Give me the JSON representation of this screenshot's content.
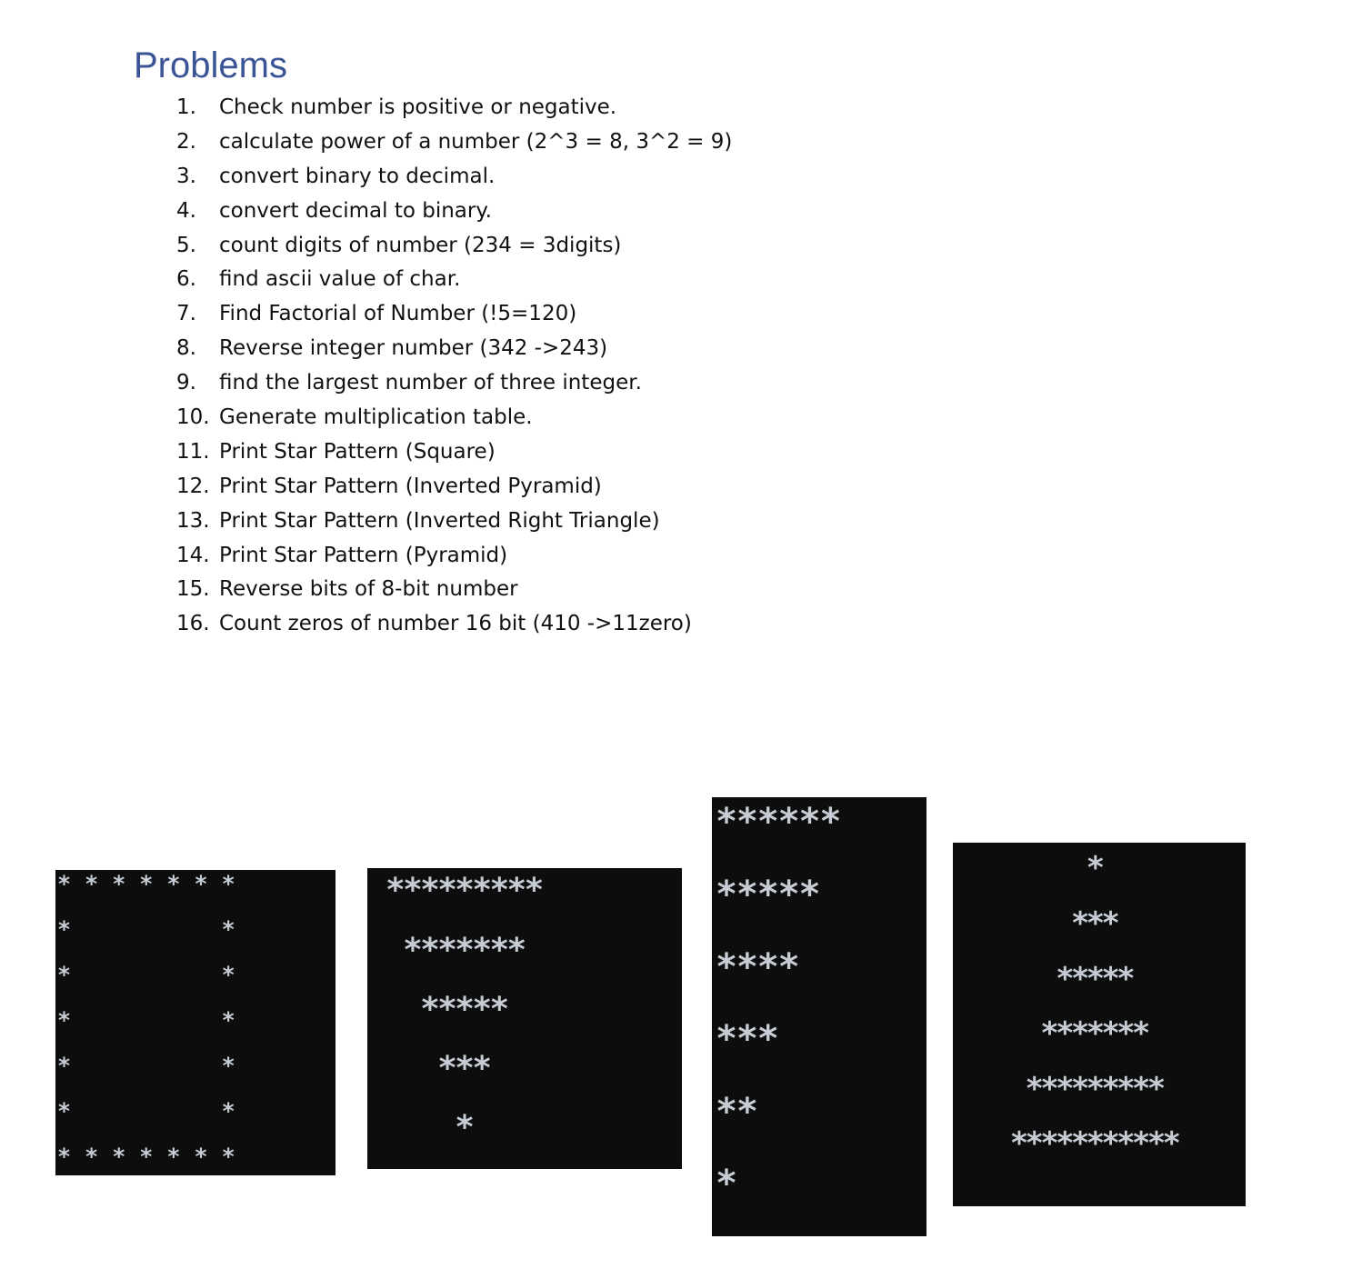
{
  "document": {
    "heading": "Problems",
    "problems": [
      {
        "number": "1.",
        "text": "Check number is positive or negative."
      },
      {
        "number": "2.",
        "text": "calculate power of a number (2^3 = 8, 3^2 = 9)"
      },
      {
        "number": "3.",
        "text": "convert binary to decimal."
      },
      {
        "number": "4.",
        "text": "convert decimal to binary."
      },
      {
        "number": "5.",
        "text": "count digits of number (234 = 3digits)"
      },
      {
        "number": "6.",
        "text": "find ascii value of char."
      },
      {
        "number": "7.",
        "text": "Find Factorial of Number (!5=120)"
      },
      {
        "number": "8.",
        "text": "Reverse integer number (342 ->243)"
      },
      {
        "number": "9.",
        "text": "find the largest number of three integer."
      },
      {
        "number": "10.",
        "text": "Generate multiplication table."
      },
      {
        "number": "11.",
        "text": "Print Star Pattern (Square)"
      },
      {
        "number": "12.",
        "text": "Print Star Pattern (Inverted Pyramid)"
      },
      {
        "number": "13.",
        "text": "Print Star Pattern (Inverted Right Triangle)"
      },
      {
        "number": "14.",
        "text": "Print Star Pattern (Pyramid)"
      },
      {
        "number": "15.",
        "text": "Reverse bits of 8-bit number"
      },
      {
        "number": "16.",
        "text": "Count zeros of number 16 bit (410 ->11zero)"
      }
    ]
  },
  "patterns": {
    "square": {
      "lines": [
        "* * * * * * *",
        "*           *",
        "*           *",
        "*           *",
        "*           *",
        "*           *",
        "* * * * * * *"
      ]
    },
    "inverted_pyramid": {
      "lines": [
        "*********",
        " *******",
        "  *****",
        "   ***",
        "    *"
      ]
    },
    "inverted_right_triangle": {
      "lines": [
        "******",
        "*****",
        "****",
        "***",
        "**",
        "*"
      ]
    },
    "pyramid": {
      "lines": [
        "*",
        "***",
        "*****",
        "*******",
        "*********",
        "***********"
      ]
    }
  },
  "colors": {
    "heading": "#3a5495",
    "text": "#111111",
    "terminal_background": "#0d0d0d",
    "terminal_text": "#c6ccd4"
  }
}
